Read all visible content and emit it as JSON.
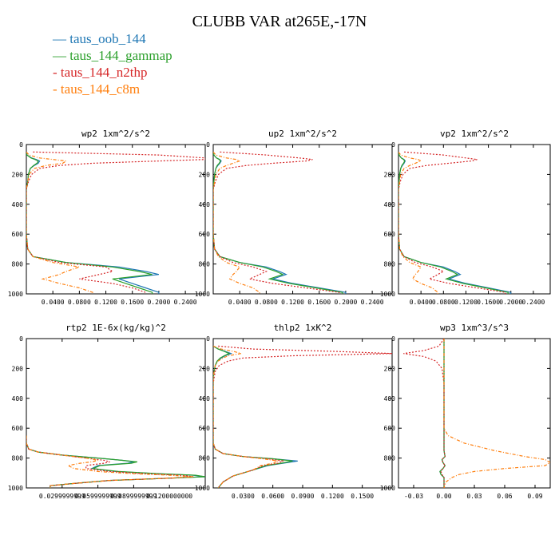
{
  "title": "CLUBB VAR at265E,-17N",
  "legend": [
    {
      "label": "taus_oob_144",
      "color": "#1f77b4",
      "dash": ""
    },
    {
      "label": "taus_144_gammap",
      "color": "#2ca02c",
      "dash": ""
    },
    {
      "label": "taus_144_n2thp",
      "color": "#d62728",
      "dash": "2,2"
    },
    {
      "label": "taus_144_c8m",
      "color": "#ff7f0e",
      "dash": "4,2,1,2"
    }
  ],
  "chart_data": [
    {
      "type": "line",
      "title": "wp2  1xm^2/s^2",
      "xlim": [
        0,
        0.27
      ],
      "ylim": [
        1000,
        0
      ],
      "xticks": [
        0.04,
        0.08,
        0.12,
        0.16,
        0.2,
        0.24
      ],
      "xtick_labels": [
        "0.0400",
        "0.0800",
        "0.1200",
        "0.1600",
        "0.2000",
        "0.2400"
      ],
      "yticks": [
        0,
        200,
        400,
        600,
        800,
        1000
      ],
      "ytick_labels": [
        "0",
        "200",
        "400",
        "600",
        "800",
        "1000"
      ],
      "y": [
        50,
        70,
        90,
        100,
        110,
        125,
        140,
        160,
        200,
        250,
        300,
        600,
        700,
        750,
        790,
        820,
        850,
        870,
        900,
        930,
        960,
        990,
        1000
      ],
      "series": [
        {
          "name": "taus_oob_144",
          "values": [
            0,
            0.001,
            0.008,
            0.015,
            0.02,
            0.018,
            0.012,
            0.006,
            0.003,
            0.002,
            0,
            0,
            0.002,
            0.01,
            0.06,
            0.14,
            0.18,
            0.2,
            0.14,
            0.16,
            0.18,
            0.2,
            0.2
          ]
        },
        {
          "name": "taus_144_gammap",
          "values": [
            0,
            0.001,
            0.007,
            0.013,
            0.018,
            0.016,
            0.011,
            0.006,
            0.003,
            0.002,
            0,
            0,
            0.002,
            0.01,
            0.06,
            0.13,
            0.17,
            0.19,
            0.13,
            0.15,
            0.17,
            0.19,
            0.19
          ]
        },
        {
          "name": "taus_144_n2thp",
          "values": [
            0.01,
            0.2,
            0.27,
            0.27,
            0.2,
            0.1,
            0.05,
            0.02,
            0.008,
            0.003,
            0,
            0,
            0.002,
            0.01,
            0.05,
            0.12,
            0.13,
            0.11,
            0.08,
            0.13,
            0.16,
            0.18,
            0.18
          ]
        },
        {
          "name": "taus_144_c8m",
          "values": [
            0,
            0.004,
            0.02,
            0.04,
            0.06,
            0.055,
            0.03,
            0.012,
            0.004,
            0.002,
            0,
            0,
            0.002,
            0.01,
            0.04,
            0.08,
            0.06,
            0.05,
            0.025,
            0.05,
            0.08,
            0.1,
            0.1
          ]
        }
      ]
    },
    {
      "type": "line",
      "title": "up2  1xm^2/s^2",
      "xlim": [
        0,
        0.27
      ],
      "ylim": [
        1000,
        0
      ],
      "xticks": [
        0.04,
        0.08,
        0.12,
        0.16,
        0.2,
        0.24
      ],
      "xtick_labels": [
        "0.0400",
        "0.0800",
        "0.1200",
        "0.1600",
        "0.2000",
        "0.2400"
      ],
      "yticks": [
        0,
        200,
        400,
        600,
        800,
        1000
      ],
      "ytick_labels": [
        "0",
        "200",
        "400",
        "600",
        "800",
        "1000"
      ],
      "y": [
        50,
        70,
        90,
        100,
        110,
        125,
        140,
        160,
        200,
        250,
        300,
        600,
        700,
        750,
        790,
        820,
        850,
        870,
        900,
        930,
        960,
        990,
        1000
      ],
      "series": [
        {
          "name": "taus_oob_144",
          "values": [
            0,
            0.001,
            0.005,
            0.01,
            0.012,
            0.01,
            0.007,
            0.004,
            0.002,
            0.001,
            0,
            0,
            0.002,
            0.01,
            0.04,
            0.08,
            0.1,
            0.11,
            0.09,
            0.12,
            0.16,
            0.2,
            0.2
          ]
        },
        {
          "name": "taus_144_gammap",
          "values": [
            0,
            0.001,
            0.005,
            0.009,
            0.011,
            0.009,
            0.006,
            0.004,
            0.002,
            0.001,
            0,
            0,
            0.002,
            0.01,
            0.04,
            0.075,
            0.095,
            0.105,
            0.085,
            0.115,
            0.155,
            0.195,
            0.195
          ]
        },
        {
          "name": "taus_144_n2thp",
          "values": [
            0.01,
            0.08,
            0.13,
            0.15,
            0.14,
            0.09,
            0.05,
            0.02,
            0.008,
            0.003,
            0,
            0,
            0.002,
            0.01,
            0.03,
            0.06,
            0.08,
            0.07,
            0.055,
            0.09,
            0.14,
            0.19,
            0.19
          ]
        },
        {
          "name": "taus_144_c8m",
          "values": [
            0,
            0.004,
            0.02,
            0.035,
            0.04,
            0.03,
            0.02,
            0.01,
            0.004,
            0.002,
            0,
            0,
            0.002,
            0.008,
            0.02,
            0.04,
            0.035,
            0.03,
            0.025,
            0.04,
            0.06,
            0.07,
            0.07
          ]
        }
      ]
    },
    {
      "type": "line",
      "title": "vp2  1xm^2/s^2",
      "xlim": [
        0,
        0.27
      ],
      "ylim": [
        1000,
        0
      ],
      "xticks": [
        0.04,
        0.08,
        0.12,
        0.16,
        0.2,
        0.24
      ],
      "xtick_labels": [
        "0.0400",
        "0.0800",
        "0.1200",
        "0.1600",
        "0.2000",
        "0.2400"
      ],
      "yticks": [
        0,
        200,
        400,
        600,
        800,
        1000
      ],
      "ytick_labels": [
        "0",
        "200",
        "400",
        "600",
        "800",
        "1000"
      ],
      "y": [
        50,
        70,
        90,
        100,
        110,
        125,
        140,
        160,
        200,
        250,
        300,
        600,
        700,
        750,
        790,
        820,
        850,
        870,
        900,
        930,
        960,
        990,
        1000
      ],
      "series": [
        {
          "name": "taus_oob_144",
          "values": [
            0,
            0.001,
            0.005,
            0.01,
            0.012,
            0.01,
            0.007,
            0.004,
            0.002,
            0.001,
            0,
            0,
            0.002,
            0.01,
            0.04,
            0.08,
            0.1,
            0.11,
            0.09,
            0.12,
            0.16,
            0.2,
            0.2
          ]
        },
        {
          "name": "taus_144_gammap",
          "values": [
            0,
            0.001,
            0.005,
            0.009,
            0.011,
            0.009,
            0.006,
            0.004,
            0.002,
            0.001,
            0,
            0,
            0.002,
            0.01,
            0.04,
            0.075,
            0.095,
            0.105,
            0.085,
            0.115,
            0.155,
            0.195,
            0.195
          ]
        },
        {
          "name": "taus_144_n2thp",
          "values": [
            0.01,
            0.08,
            0.12,
            0.14,
            0.13,
            0.09,
            0.05,
            0.02,
            0.008,
            0.003,
            0,
            0,
            0.002,
            0.01,
            0.03,
            0.06,
            0.08,
            0.07,
            0.055,
            0.09,
            0.14,
            0.19,
            0.19
          ]
        },
        {
          "name": "taus_144_c8m",
          "values": [
            0,
            0.004,
            0.02,
            0.035,
            0.04,
            0.03,
            0.02,
            0.01,
            0.004,
            0.002,
            0,
            0,
            0.002,
            0.008,
            0.02,
            0.04,
            0.035,
            0.03,
            0.025,
            0.04,
            0.06,
            0.07,
            0.07
          ]
        }
      ]
    },
    {
      "type": "line",
      "title": "rtp2  1E-6x(kg/kg)^2",
      "xlim": [
        0,
        0.15
      ],
      "ylim": [
        1000,
        0
      ],
      "xticks": [
        0.03,
        0.06,
        0.09,
        0.12
      ],
      "xtick_labels": [
        "0.0299999999",
        "0.0599999999",
        "0.0899999999",
        "0.1200000000"
      ],
      "yticks": [
        0,
        200,
        400,
        600,
        800,
        1000
      ],
      "ytick_labels": [
        "0",
        "200",
        "400",
        "600",
        "800",
        "1000"
      ],
      "y": [
        650,
        700,
        740,
        760,
        780,
        800,
        815,
        825,
        835,
        850,
        870,
        890,
        905,
        915,
        925,
        935,
        950,
        970,
        985,
        1000
      ],
      "series": [
        {
          "name": "taus_oob_144",
          "values": [
            0,
            0,
            0.002,
            0.01,
            0.03,
            0.06,
            0.08,
            0.09,
            0.085,
            0.06,
            0.055,
            0.075,
            0.11,
            0.14,
            0.15,
            0.12,
            0.07,
            0.04,
            0.02,
            0.02
          ]
        },
        {
          "name": "taus_144_gammap",
          "values": [
            0,
            0,
            0.002,
            0.01,
            0.03,
            0.06,
            0.08,
            0.093,
            0.088,
            0.062,
            0.056,
            0.077,
            0.112,
            0.142,
            0.15,
            0.12,
            0.07,
            0.04,
            0.02,
            0.02
          ]
        },
        {
          "name": "taus_144_n2thp",
          "values": [
            0,
            0,
            0.002,
            0.01,
            0.03,
            0.05,
            0.065,
            0.07,
            0.065,
            0.05,
            0.05,
            0.07,
            0.1,
            0.13,
            0.14,
            0.12,
            0.07,
            0.04,
            0.02,
            0.02
          ]
        },
        {
          "name": "taus_144_c8m",
          "values": [
            0,
            0,
            0.002,
            0.01,
            0.03,
            0.05,
            0.06,
            0.055,
            0.045,
            0.035,
            0.04,
            0.06,
            0.09,
            0.12,
            0.14,
            0.12,
            0.07,
            0.04,
            0.02,
            0.02
          ]
        }
      ]
    },
    {
      "type": "line",
      "title": "thlp2  1xK^2",
      "xlim": [
        0,
        0.18
      ],
      "ylim": [
        1000,
        0
      ],
      "xticks": [
        0.03,
        0.06,
        0.09,
        0.12,
        0.15
      ],
      "xtick_labels": [
        "0.0300",
        "0.0600",
        "0.0900",
        "0.1200",
        "0.1500"
      ],
      "yticks": [
        0,
        200,
        400,
        600,
        800,
        1000
      ],
      "ytick_labels": [
        "0",
        "200",
        "400",
        "600",
        "800",
        "1000"
      ],
      "y": [
        50,
        70,
        85,
        100,
        115,
        130,
        150,
        180,
        220,
        260,
        300,
        650,
        700,
        740,
        770,
        790,
        805,
        820,
        835,
        850,
        880,
        920,
        960,
        1000
      ],
      "series": [
        {
          "name": "taus_oob_144",
          "values": [
            0,
            0.005,
            0.012,
            0.018,
            0.012,
            0.008,
            0.004,
            0.002,
            0.001,
            0,
            0,
            0,
            0,
            0.002,
            0.01,
            0.03,
            0.06,
            0.085,
            0.07,
            0.055,
            0.04,
            0.02,
            0.01,
            0.005
          ]
        },
        {
          "name": "taus_144_gammap",
          "values": [
            0,
            0.005,
            0.011,
            0.016,
            0.011,
            0.007,
            0.004,
            0.002,
            0.001,
            0,
            0,
            0,
            0,
            0.002,
            0.01,
            0.03,
            0.06,
            0.08,
            0.068,
            0.053,
            0.04,
            0.02,
            0.01,
            0.005
          ]
        },
        {
          "name": "taus_144_n2thp",
          "values": [
            0.005,
            0.04,
            0.12,
            0.18,
            0.08,
            0.03,
            0.015,
            0.006,
            0.002,
            0.001,
            0,
            0,
            0,
            0.002,
            0.01,
            0.03,
            0.055,
            0.07,
            0.065,
            0.05,
            0.04,
            0.02,
            0.01,
            0.005
          ]
        },
        {
          "name": "taus_144_c8m",
          "values": [
            0,
            0.008,
            0.02,
            0.028,
            0.015,
            0.01,
            0.005,
            0.002,
            0.001,
            0,
            0,
            0,
            0,
            0.002,
            0.01,
            0.03,
            0.05,
            0.065,
            0.06,
            0.048,
            0.04,
            0.02,
            0.01,
            0.005
          ]
        }
      ]
    },
    {
      "type": "line",
      "title": "wp3  1xm^3/s^3",
      "xlim": [
        -0.045,
        0.105
      ],
      "ylim": [
        1000,
        0
      ],
      "xticks": [
        -0.03,
        0,
        0.03,
        0.06,
        0.09
      ],
      "xtick_labels": [
        "-0.03",
        "0.00",
        "0.03",
        "0.06",
        "0.09"
      ],
      "yticks": [
        0,
        200,
        400,
        600,
        800,
        1000
      ],
      "ytick_labels": [
        "0",
        "200",
        "400",
        "600",
        "800",
        "1000"
      ],
      "y": [
        0,
        50,
        80,
        100,
        120,
        150,
        200,
        300,
        600,
        650,
        700,
        750,
        790,
        810,
        830,
        850,
        870,
        890,
        910,
        930,
        960,
        1000
      ],
      "series": [
        {
          "name": "taus_oob_144",
          "values": [
            0,
            0,
            0,
            0,
            0,
            0,
            0,
            0,
            0,
            0,
            0,
            0,
            0.001,
            -0.002,
            -0.001,
            0.001,
            -0.001,
            -0.004,
            -0.003,
            0,
            0,
            0
          ]
        },
        {
          "name": "taus_144_gammap",
          "values": [
            0,
            0,
            0,
            0,
            0,
            0,
            0,
            0,
            0,
            0,
            0,
            0,
            0.001,
            -0.002,
            -0.001,
            0.001,
            -0.001,
            -0.004,
            -0.003,
            0,
            0,
            0
          ]
        },
        {
          "name": "taus_144_n2thp",
          "values": [
            0,
            -0.005,
            -0.02,
            -0.04,
            -0.02,
            -0.008,
            -0.002,
            0,
            0,
            0,
            0,
            0,
            0.001,
            -0.002,
            -0.001,
            0.001,
            -0.001,
            -0.003,
            -0.002,
            0,
            0,
            0
          ]
        },
        {
          "name": "taus_144_c8m",
          "values": [
            0,
            0,
            0,
            0,
            0,
            0,
            0,
            0,
            0,
            0.004,
            0.02,
            0.05,
            0.08,
            0.1,
            0.105,
            0.1,
            0.06,
            0.03,
            0.015,
            0.008,
            0.002,
            0
          ]
        }
      ]
    }
  ]
}
